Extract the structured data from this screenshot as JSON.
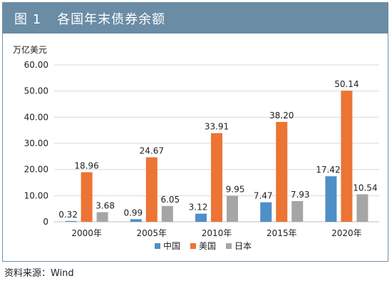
{
  "title": {
    "figure_number": "图 1",
    "text": "各国年末债券余额"
  },
  "unit_label": "万亿美元",
  "source": "资料来源：Wind",
  "colors": {
    "china": "#4f8fc7",
    "usa": "#ec7434",
    "japan": "#a5a5a5",
    "title_bar": "#6a8ca5",
    "grid": "#d9d9d9"
  },
  "chart_data": {
    "type": "bar",
    "categories": [
      "2000年",
      "2005年",
      "2010年",
      "2015年",
      "2020年"
    ],
    "series": [
      {
        "name": "中国",
        "values": [
          0.32,
          0.99,
          3.12,
          7.47,
          17.42
        ],
        "labels": [
          "0.32",
          "0.99",
          "3.12",
          "7.47",
          "17.42"
        ]
      },
      {
        "name": "美国",
        "values": [
          18.96,
          24.67,
          33.91,
          38.2,
          50.14
        ],
        "labels": [
          "18.96",
          "24.67",
          "33.91",
          "38.20",
          "50.14"
        ]
      },
      {
        "name": "日本",
        "values": [
          3.68,
          6.05,
          9.95,
          7.93,
          10.54
        ],
        "labels": [
          "3.68",
          "6.05",
          "9.95",
          "7.93",
          "10.54"
        ]
      }
    ],
    "ylim": [
      0,
      60
    ],
    "yticks": [
      "0",
      "10.00",
      "20.00",
      "30.00",
      "40.00",
      "50.00",
      "60.00"
    ],
    "ytick_values": [
      0,
      10,
      20,
      30,
      40,
      50,
      60
    ],
    "grid": true,
    "legend_position": "bottom-center"
  }
}
